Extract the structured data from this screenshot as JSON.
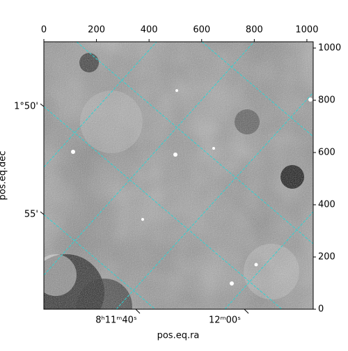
{
  "chart_data": {
    "type": "image",
    "xlabel": "pos.eq.ra",
    "ylabel": "pos.eq.dec",
    "xlim": [
      0,
      1024
    ],
    "ylim": [
      0,
      1024
    ],
    "xticks": [
      0,
      200,
      400,
      600,
      800,
      1000
    ],
    "yticks": [
      0,
      200,
      400,
      600,
      800,
      1000
    ],
    "ra_ticks": [
      "8ʰ11ᵐ40ˢ",
      "12ᵐ00ˢ"
    ],
    "dec_ticks": [
      "1°50'",
      "55'"
    ]
  }
}
